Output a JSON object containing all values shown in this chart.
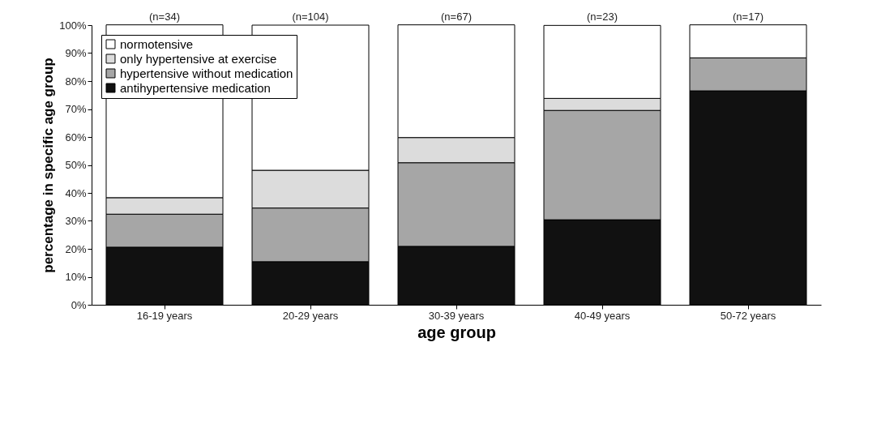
{
  "chart_data": {
    "type": "bar",
    "stacked": true,
    "xlabel": "age group",
    "ylabel": "percentage in specific age group",
    "categories": [
      "16-19 years",
      "20-29 years",
      "30-39 years",
      "40-49 years",
      "50-72 years"
    ],
    "series": [
      {
        "name": "antihypertensive medication",
        "color": "#111111",
        "values": [
          20.6,
          15.4,
          20.9,
          30.4,
          76.5
        ]
      },
      {
        "name": "hypertensive without medication",
        "color": "#a6a6a6",
        "values": [
          11.8,
          19.2,
          29.9,
          39.1,
          11.8
        ]
      },
      {
        "name": "only hypertensive at exercise",
        "color": "#dcdcdc",
        "values": [
          5.9,
          13.5,
          9.0,
          4.3,
          0
        ]
      },
      {
        "name": "normotensive",
        "color": "#ffffff",
        "values": [
          61.8,
          51.9,
          40.3,
          26.1,
          11.8
        ]
      }
    ],
    "ylim": [
      0,
      100
    ],
    "yticks": [
      {
        "value": 0,
        "label": "0%"
      },
      {
        "value": 10,
        "label": "10%"
      },
      {
        "value": 20,
        "label": "20%"
      },
      {
        "value": 30,
        "label": "30%"
      },
      {
        "value": 40,
        "label": "40%"
      },
      {
        "value": 50,
        "label": "50%"
      },
      {
        "value": 60,
        "label": "60%"
      },
      {
        "value": 70,
        "label": "70%"
      },
      {
        "value": 80,
        "label": "80%"
      },
      {
        "value": 90,
        "label": "90%"
      },
      {
        "value": 100,
        "label": "100%"
      }
    ],
    "annotations": [
      {
        "text": "(n=34)",
        "x": "16-19 years",
        "y": 100
      },
      {
        "text": "(n=104)",
        "x": "20-29 years",
        "y": 100
      },
      {
        "text": "(n=67)",
        "x": "30-39 years",
        "y": 100
      },
      {
        "text": "(n=23)",
        "x": "40-49 years",
        "y": 100
      },
      {
        "text": "(n=17)",
        "x": "50-72 years",
        "y": 100
      }
    ],
    "legend": "top left",
    "grid": false
  }
}
